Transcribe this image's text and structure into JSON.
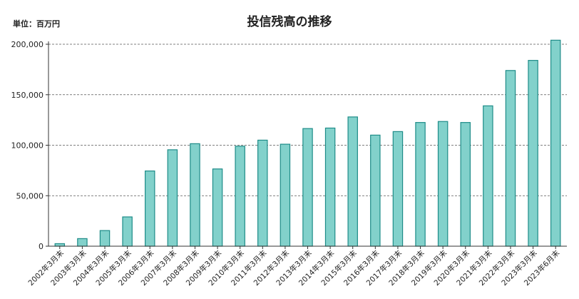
{
  "chart_data": {
    "type": "bar",
    "title": "投信残高の推移",
    "unit_label": "単位：百万円",
    "categories": [
      "2002年3月末",
      "2003年3月末",
      "2004年3月末",
      "2005年3月末",
      "2006年3月末",
      "2007年3月末",
      "2008年3月末",
      "2009年3月末",
      "2010年3月末",
      "2011年3月末",
      "2012年3月末",
      "2013年3月末",
      "2014年3月末",
      "2015年3月末",
      "2016年3月末",
      "2017年3月末",
      "2018年3月末",
      "2019年3月末",
      "2020年3月末",
      "2021年3月末",
      "2022年3月末",
      "2023年3月末",
      "2023年6月末"
    ],
    "values": [
      2500,
      7500,
      15500,
      29000,
      74500,
      95500,
      101500,
      76500,
      99000,
      105000,
      101000,
      116500,
      117000,
      128000,
      110000,
      113500,
      122500,
      123500,
      122500,
      139000,
      174000,
      184000,
      204000
    ],
    "ylim": [
      0,
      200000
    ],
    "yticks": [
      0,
      50000,
      100000,
      150000,
      200000
    ],
    "ytick_labels": [
      "0",
      "50,000",
      "100,000",
      "150,000",
      "200,000"
    ],
    "grid": true,
    "colors": {
      "bar_fill": "#82d1cb",
      "bar_stroke": "#1e8c88",
      "axis": "#333333",
      "grid": "#555555"
    }
  }
}
